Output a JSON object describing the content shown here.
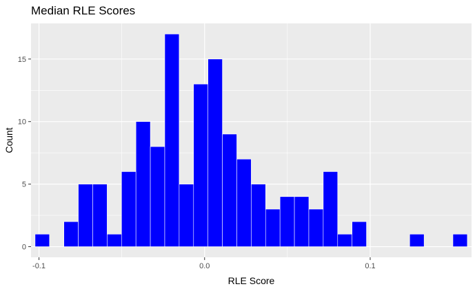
{
  "chart_data": {
    "type": "bar",
    "title": "Median RLE Scores",
    "xlabel": "RLE Score",
    "ylabel": "Count",
    "bin_width": 0.0087,
    "bins": [
      {
        "x": -0.098,
        "count": 1
      },
      {
        "x": -0.0893,
        "count": 0
      },
      {
        "x": -0.0806,
        "count": 2
      },
      {
        "x": -0.0719,
        "count": 5
      },
      {
        "x": -0.0632,
        "count": 5
      },
      {
        "x": -0.0545,
        "count": 1
      },
      {
        "x": -0.0458,
        "count": 6
      },
      {
        "x": -0.0371,
        "count": 10
      },
      {
        "x": -0.0284,
        "count": 8
      },
      {
        "x": -0.0197,
        "count": 17
      },
      {
        "x": -0.011,
        "count": 5
      },
      {
        "x": -0.0023,
        "count": 13
      },
      {
        "x": 0.0064,
        "count": 15
      },
      {
        "x": 0.0151,
        "count": 9
      },
      {
        "x": 0.0238,
        "count": 7
      },
      {
        "x": 0.0325,
        "count": 5
      },
      {
        "x": 0.0412,
        "count": 3
      },
      {
        "x": 0.0499,
        "count": 4
      },
      {
        "x": 0.0586,
        "count": 4
      },
      {
        "x": 0.0673,
        "count": 3
      },
      {
        "x": 0.076,
        "count": 6
      },
      {
        "x": 0.0847,
        "count": 1
      },
      {
        "x": 0.0934,
        "count": 2
      },
      {
        "x": 0.1021,
        "count": 0
      },
      {
        "x": 0.1108,
        "count": 0
      },
      {
        "x": 0.1195,
        "count": 0
      },
      {
        "x": 0.1282,
        "count": 1
      },
      {
        "x": 0.1369,
        "count": 0
      },
      {
        "x": 0.1456,
        "count": 0
      },
      {
        "x": 0.1543,
        "count": 1
      }
    ],
    "xlim": [
      -0.1048,
      0.1612
    ],
    "ylim": [
      -0.85,
      17.85
    ],
    "x_ticks": [
      {
        "value": -0.1,
        "label": "-0.1"
      },
      {
        "value": 0.0,
        "label": "0.0"
      },
      {
        "value": 0.1,
        "label": "0.1"
      }
    ],
    "y_ticks": [
      {
        "value": 0,
        "label": "0"
      },
      {
        "value": 5,
        "label": "5"
      },
      {
        "value": 10,
        "label": "10"
      },
      {
        "value": 15,
        "label": "15"
      }
    ],
    "grid": true,
    "bar_fill": "#0000FF",
    "bar_outline": "#FFFFFF",
    "panel_background": "#EBEBEB",
    "grid_color": "#FFFFFF"
  }
}
